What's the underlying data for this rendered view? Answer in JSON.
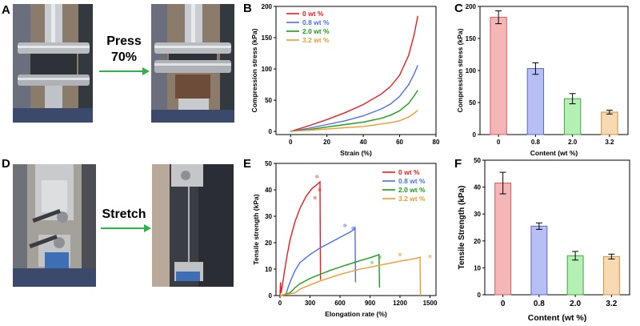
{
  "panel_letters": [
    "A",
    "B",
    "C",
    "D",
    "E",
    "F"
  ],
  "captions": {
    "press": [
      "Press",
      "70%"
    ],
    "stretch": "Stretch"
  },
  "colors": {
    "c0": "#ee1c1c",
    "c08": "#4a6ef5",
    "c20": "#1a9e1a",
    "c32": "#f39a2a",
    "arrow": "#2db34a",
    "bar0": "#f4b6b6",
    "bar08": "#b8bff4",
    "bar20": "#b4f0b4",
    "bar32": "#f7d9b2"
  },
  "chart_data": [
    {
      "id": "B",
      "type": "line",
      "xlabel": "Strain (%)",
      "ylabel": "Compression stress (kPa)",
      "xlim": [
        -8,
        80
      ],
      "ylim": [
        -5,
        200
      ],
      "xticks": [
        0,
        20,
        40,
        60,
        80
      ],
      "yticks": [
        0,
        50,
        100,
        150,
        200
      ],
      "legend_position": "top-left",
      "series": [
        {
          "name": "0 wt %",
          "color": "#ee1c1c",
          "x": [
            0,
            10,
            20,
            30,
            40,
            50,
            55,
            60,
            65,
            68,
            70
          ],
          "y": [
            0,
            9,
            19,
            30,
            43,
            60,
            72,
            90,
            122,
            155,
            185
          ]
        },
        {
          "name": "0.8 wt %",
          "color": "#4a6ef5",
          "x": [
            0,
            10,
            20,
            30,
            40,
            50,
            55,
            60,
            65,
            68,
            70
          ],
          "y": [
            0,
            5,
            11,
            17,
            25,
            36,
            44,
            56,
            75,
            92,
            106
          ]
        },
        {
          "name": "2.0 wt %",
          "color": "#1a9e1a",
          "x": [
            0,
            10,
            20,
            30,
            40,
            50,
            55,
            60,
            65,
            68,
            70
          ],
          "y": [
            0,
            3,
            7,
            11,
            15,
            21,
            26,
            33,
            45,
            57,
            66
          ]
        },
        {
          "name": "3.2 wt %",
          "color": "#f39a2a",
          "x": [
            0,
            10,
            20,
            30,
            40,
            50,
            55,
            60,
            65,
            68,
            70
          ],
          "y": [
            0,
            2,
            4,
            6,
            8,
            12,
            14,
            17,
            23,
            29,
            34
          ]
        }
      ]
    },
    {
      "id": "C",
      "type": "bar",
      "xlabel": "Content (wt %)",
      "ylabel": "Compression stress (kPa)",
      "categories": [
        "0",
        "0.8",
        "2.0",
        "3.2"
      ],
      "values": [
        183,
        103,
        56,
        35
      ],
      "errors": [
        10,
        9,
        8,
        3
      ],
      "ylim": [
        0,
        200
      ],
      "yticks": [
        0,
        50,
        100,
        150,
        200
      ]
    },
    {
      "id": "E",
      "type": "line",
      "xlabel": "Elongation rate (%)",
      "ylabel": "Tensile strength (kPa)",
      "xlim": [
        -40,
        1560
      ],
      "ylim": [
        0,
        50
      ],
      "xticks": [
        0,
        300,
        600,
        900,
        1200,
        1500
      ],
      "yticks": [
        0,
        10,
        20,
        30,
        40,
        50
      ],
      "legend_position": "top-right",
      "series": [
        {
          "name": "0 wt %",
          "color": "#ee1c1c",
          "x": [
            0,
            5,
            10,
            20,
            40,
            70,
            100,
            150,
            200,
            260,
            320,
            370,
            400,
            400,
            405
          ],
          "y": [
            0,
            5,
            1,
            3,
            8,
            15,
            21,
            28,
            33,
            37.5,
            40.5,
            42,
            43,
            42,
            6
          ]
        },
        {
          "name": "0.8 wt %",
          "color": "#4a6ef5",
          "x": [
            0,
            60,
            80,
            110,
            150,
            200,
            300,
            400,
            500,
            600,
            700,
            740,
            750,
            755
          ],
          "y": [
            0,
            0.5,
            3,
            6,
            9.5,
            12.5,
            15.5,
            18,
            20,
            22,
            24,
            25,
            26,
            5
          ]
        },
        {
          "name": "2.0 wt %",
          "color": "#1a9e1a",
          "x": [
            0,
            100,
            150,
            200,
            300,
            400,
            500,
            600,
            700,
            800,
            900,
            970,
            990,
            995
          ],
          "y": [
            0,
            1,
            3,
            4.5,
            6.5,
            8,
            9.5,
            10.8,
            12,
            13.2,
            14.3,
            15.2,
            15.5,
            3
          ]
        },
        {
          "name": "3.2 wt %",
          "color": "#f39a2a",
          "x": [
            0,
            150,
            200,
            300,
            400,
            600,
            800,
            1000,
            1200,
            1350,
            1400,
            1405
          ],
          "y": [
            0,
            1,
            2.5,
            4,
            5.5,
            8,
            10,
            11.5,
            13,
            14,
            14.5,
            0
          ]
        }
      ],
      "scatter": [
        {
          "x": 370,
          "y": 45,
          "color": "#f4a0a0"
        },
        {
          "x": 395,
          "y": 40,
          "color": "#f4a0a0"
        },
        {
          "x": 350,
          "y": 37,
          "color": "#f4a0a0"
        },
        {
          "x": 650,
          "y": 26.5,
          "color": "#a8b8f4"
        },
        {
          "x": 730,
          "y": 25.5,
          "color": "#a8b8f4"
        },
        {
          "x": 1000,
          "y": 14.5,
          "color": "#a8e0a8"
        },
        {
          "x": 920,
          "y": 12.5,
          "color": "#a8e0a8"
        },
        {
          "x": 1200,
          "y": 15.5,
          "color": "#f7c69a"
        },
        {
          "x": 1500,
          "y": 14.8,
          "color": "#f7c69a"
        }
      ]
    },
    {
      "id": "F",
      "type": "bar",
      "xlabel": "Content (wt %)",
      "ylabel": "Tensile Strength (kPa)",
      "categories": [
        "0",
        "0.8",
        "2.0",
        "3.2"
      ],
      "values": [
        41.5,
        25.5,
        14.5,
        14.2
      ],
      "errors": [
        4,
        1.2,
        1.6,
        0.9
      ],
      "ylim": [
        0,
        50
      ],
      "yticks": [
        0,
        10,
        20,
        30,
        40,
        50
      ]
    }
  ]
}
